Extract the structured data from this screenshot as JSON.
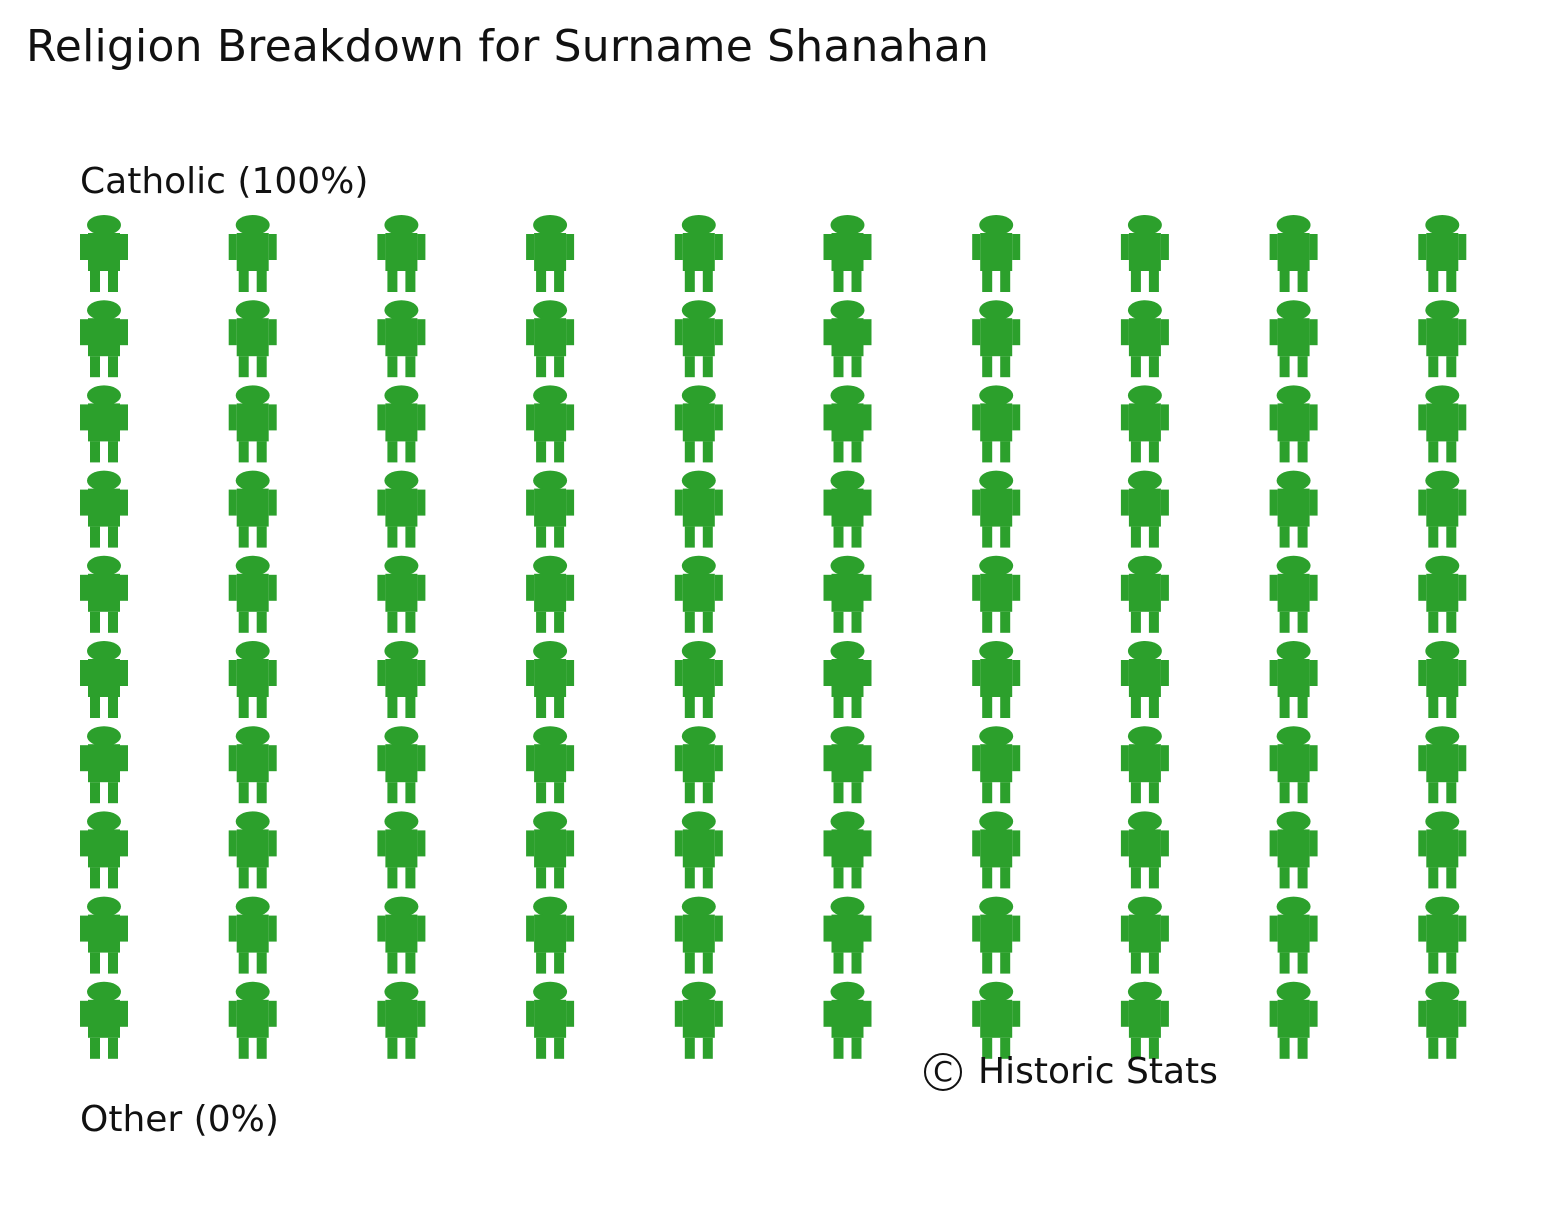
{
  "chart_data": {
    "type": "waffle",
    "title": "Religion Breakdown for Surname Shanahan",
    "total_icons": 100,
    "grid": {
      "rows": 10,
      "columns": 10
    },
    "icon": "person-icon",
    "categories": [
      {
        "name": "Catholic",
        "label": "Catholic (100%)",
        "percent": 100,
        "color": "#2ca02c"
      },
      {
        "name": "Other",
        "label": "Other (0%)",
        "percent": 0,
        "color": "#d62728"
      }
    ],
    "credit": "Historic Stats",
    "copyright_symbol": "C"
  }
}
